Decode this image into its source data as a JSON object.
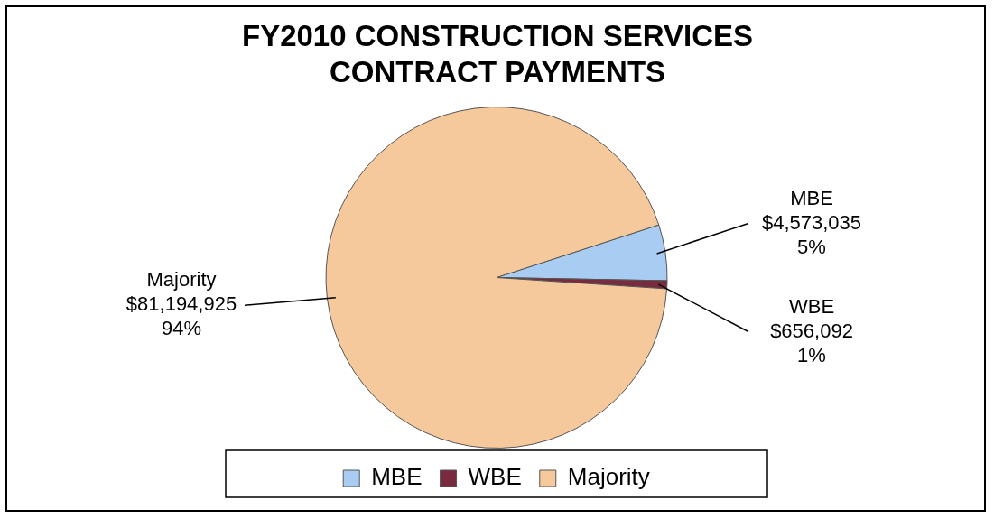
{
  "chart_data": {
    "type": "pie",
    "title": "FY2010 CONSTRUCTION SERVICES CONTRACT PAYMENTS",
    "categories": [
      "MBE",
      "WBE",
      "Majority"
    ],
    "values": [
      4573035,
      656092,
      81194925
    ],
    "colors": [
      "#a9cdf2",
      "#7a2a3e",
      "#f6c99c"
    ],
    "value_labels": [
      "$4,573,035\n5%",
      "$656,092\n1%",
      "$81,194,925\n94%"
    ],
    "legend": "bottom"
  }
}
